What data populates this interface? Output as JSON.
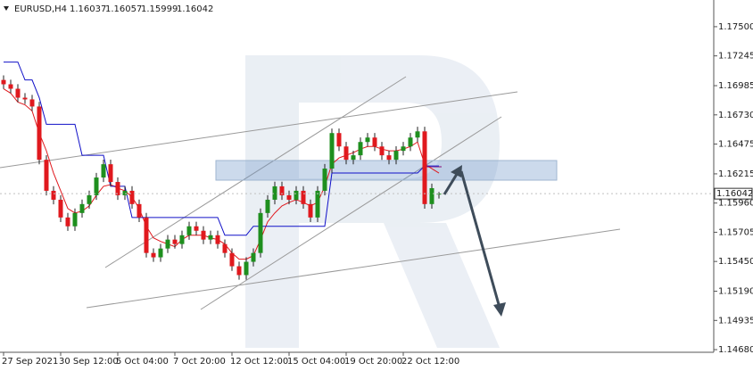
{
  "chart_data": {
    "type": "candlestick",
    "symbol": "EURUSD,H4",
    "header_ohlc": [
      "1.16037",
      "1.16057",
      "1.15999",
      "1.16042"
    ],
    "last_price_label": "1.16042",
    "categories": [
      "27 Sep 2021",
      null,
      null,
      null,
      null,
      null,
      null,
      null,
      "30 Sep 12:00",
      null,
      null,
      null,
      null,
      null,
      null,
      null,
      "5 Oct 04:00",
      null,
      null,
      null,
      null,
      null,
      null,
      null,
      "7 Oct 20:00",
      null,
      null,
      null,
      null,
      null,
      null,
      null,
      "12 Oct 12:00",
      null,
      null,
      null,
      null,
      null,
      null,
      null,
      "15 Oct 04:00",
      null,
      null,
      null,
      null,
      null,
      null,
      null,
      "19 Oct 20:00",
      null,
      null,
      null,
      null,
      null,
      null,
      null,
      "22 Oct 12:00",
      null,
      null,
      null,
      null,
      null
    ],
    "open": [
      1.17035,
      1.16997,
      1.16958,
      1.1688,
      1.16865,
      1.16803,
      1.16338,
      1.16067,
      1.15989,
      1.15834,
      1.15757,
      1.15873,
      1.15951,
      1.16028,
      1.16183,
      1.16299,
      1.16144,
      1.16028,
      1.16067,
      1.15951,
      1.15834,
      1.15524,
      1.15486,
      1.15563,
      1.15641,
      1.15602,
      1.15679,
      1.15757,
      1.15718,
      1.15641,
      1.15679,
      1.15602,
      1.15524,
      1.15408,
      1.15331,
      1.15447,
      1.15524,
      1.15873,
      1.15989,
      1.16106,
      1.16028,
      1.15989,
      1.16067,
      1.15951,
      1.15834,
      1.16067,
      1.16261,
      1.16571,
      1.16454,
      1.16338,
      1.16377,
      1.16493,
      1.16532,
      1.16454,
      1.16377,
      1.16338,
      1.16416,
      1.16454,
      1.16532,
      1.16586,
      1.15951,
      1.16037
    ],
    "high": [
      1.17075,
      1.17037,
      1.16998,
      1.1692,
      1.16905,
      1.16843,
      1.16378,
      1.16107,
      1.16029,
      1.15874,
      1.15913,
      1.15991,
      1.16068,
      1.16223,
      1.16339,
      1.16339,
      1.16184,
      1.16107,
      1.16107,
      1.15991,
      1.15874,
      1.15564,
      1.15603,
      1.15681,
      1.15681,
      1.15719,
      1.15797,
      1.15797,
      1.15758,
      1.15719,
      1.15719,
      1.15642,
      1.15564,
      1.15448,
      1.15487,
      1.15564,
      1.15913,
      1.16029,
      1.16146,
      1.16146,
      1.16068,
      1.16107,
      1.16107,
      1.15991,
      1.16107,
      1.16301,
      1.16611,
      1.16611,
      1.16494,
      1.16417,
      1.16533,
      1.16572,
      1.16572,
      1.16494,
      1.16417,
      1.16456,
      1.16494,
      1.16572,
      1.16626,
      1.16626,
      1.1613,
      1.16057
    ],
    "low": [
      1.16957,
      1.16918,
      1.1684,
      1.16825,
      1.16763,
      1.16298,
      1.16027,
      1.15949,
      1.15794,
      1.15717,
      1.15717,
      1.15833,
      1.15911,
      1.15988,
      1.16143,
      1.16104,
      1.15988,
      1.15988,
      1.15911,
      1.15794,
      1.15484,
      1.15446,
      1.15446,
      1.15523,
      1.15562,
      1.15562,
      1.15639,
      1.15678,
      1.15601,
      1.15601,
      1.15562,
      1.15484,
      1.15368,
      1.15291,
      1.15291,
      1.15407,
      1.15484,
      1.15833,
      1.15949,
      1.15988,
      1.15949,
      1.15949,
      1.15911,
      1.15794,
      1.15794,
      1.16027,
      1.16221,
      1.16414,
      1.16298,
      1.16298,
      1.16337,
      1.16453,
      1.16414,
      1.16337,
      1.16298,
      1.16298,
      1.16376,
      1.16414,
      1.16492,
      1.15911,
      1.15911,
      1.15999
    ],
    "close": [
      1.16997,
      1.16958,
      1.1688,
      1.16865,
      1.16803,
      1.16338,
      1.16067,
      1.15989,
      1.15834,
      1.15757,
      1.15873,
      1.15951,
      1.16028,
      1.16183,
      1.16299,
      1.16144,
      1.16028,
      1.16067,
      1.15951,
      1.15834,
      1.15524,
      1.15486,
      1.15563,
      1.15641,
      1.15602,
      1.15679,
      1.15757,
      1.15718,
      1.15641,
      1.15679,
      1.15602,
      1.15524,
      1.15408,
      1.15331,
      1.15447,
      1.15524,
      1.15873,
      1.15989,
      1.16106,
      1.16028,
      1.15989,
      1.16067,
      1.15951,
      1.15834,
      1.16067,
      1.16261,
      1.16571,
      1.16454,
      1.16338,
      1.16377,
      1.16493,
      1.16532,
      1.16454,
      1.16377,
      1.16338,
      1.16416,
      1.16454,
      1.16532,
      1.16586,
      1.15951,
      1.1609,
      1.16042
    ],
    "up_color": "#1e8f1e",
    "down_color": "#e0191e",
    "wick_color": "#222222",
    "lines": [
      {
        "color": "#e0191e",
        "values": [
          1.16958,
          1.16919,
          1.16842,
          1.16818,
          1.16764,
          1.16571,
          1.16416,
          1.16222,
          1.16067,
          1.15912,
          1.15873,
          1.15889,
          1.15935,
          1.16028,
          1.16106,
          1.16121,
          1.1609,
          1.16067,
          1.16013,
          1.15912,
          1.15757,
          1.15656,
          1.15625,
          1.15602,
          1.15579,
          1.15641,
          1.15679,
          1.15679,
          1.15679,
          1.15656,
          1.15641,
          1.15602,
          1.15524,
          1.1547,
          1.1547,
          1.15501,
          1.15641,
          1.15796,
          1.15873,
          1.15935,
          1.15966,
          1.15989,
          1.15966,
          1.15935,
          1.15966,
          1.16106,
          1.16299,
          1.16354,
          1.16377,
          1.164,
          1.16431,
          1.16454,
          1.16454,
          1.16431,
          1.16416,
          1.16416,
          1.16431,
          1.16454,
          1.16493,
          1.16299,
          1.16261,
          1.16222
        ]
      },
      {
        "color": "#1010c8",
        "values": [
          1.17191,
          1.17191,
          1.17191,
          1.17035,
          1.17035,
          1.1688,
          1.16648,
          1.16648,
          1.16648,
          1.16648,
          1.16648,
          1.16377,
          1.16377,
          1.16377,
          1.16377,
          1.16106,
          1.16106,
          1.16106,
          1.15834,
          1.15834,
          1.15834,
          1.15834,
          1.15834,
          1.15834,
          1.15834,
          1.15834,
          1.15834,
          1.15834,
          1.15834,
          1.15834,
          1.15834,
          1.15679,
          1.15679,
          1.15679,
          1.15679,
          1.15757,
          1.15757,
          1.15757,
          1.15757,
          1.15757,
          1.15757,
          1.15757,
          1.15757,
          1.15757,
          1.15757,
          1.15757,
          1.16222,
          1.16222,
          1.16222,
          1.16222,
          1.16222,
          1.16222,
          1.16222,
          1.16222,
          1.16222,
          1.16222,
          1.16222,
          1.16222,
          1.16222,
          1.16284,
          1.16284,
          1.16284
        ]
      }
    ],
    "ylim": [
      1.14657,
      1.17733
    ],
    "yticks": [
      {
        "value": 1.175,
        "label": "1.17500"
      },
      {
        "value": 1.17245,
        "label": "1.17245"
      },
      {
        "value": 1.16985,
        "label": "1.16985"
      },
      {
        "value": 1.1673,
        "label": "1.16730"
      },
      {
        "value": 1.16475,
        "label": "1.16475"
      },
      {
        "value": 1.16215,
        "label": "1.16215"
      },
      {
        "value": 1.1596,
        "label": "1.15960"
      },
      {
        "value": 1.15705,
        "label": "1.15705"
      },
      {
        "value": 1.1545,
        "label": "1.15450"
      },
      {
        "value": 1.1519,
        "label": "1.15190"
      },
      {
        "value": 1.14935,
        "label": "1.14935"
      },
      {
        "value": 1.1468,
        "label": "1.14680"
      }
    ]
  }
}
